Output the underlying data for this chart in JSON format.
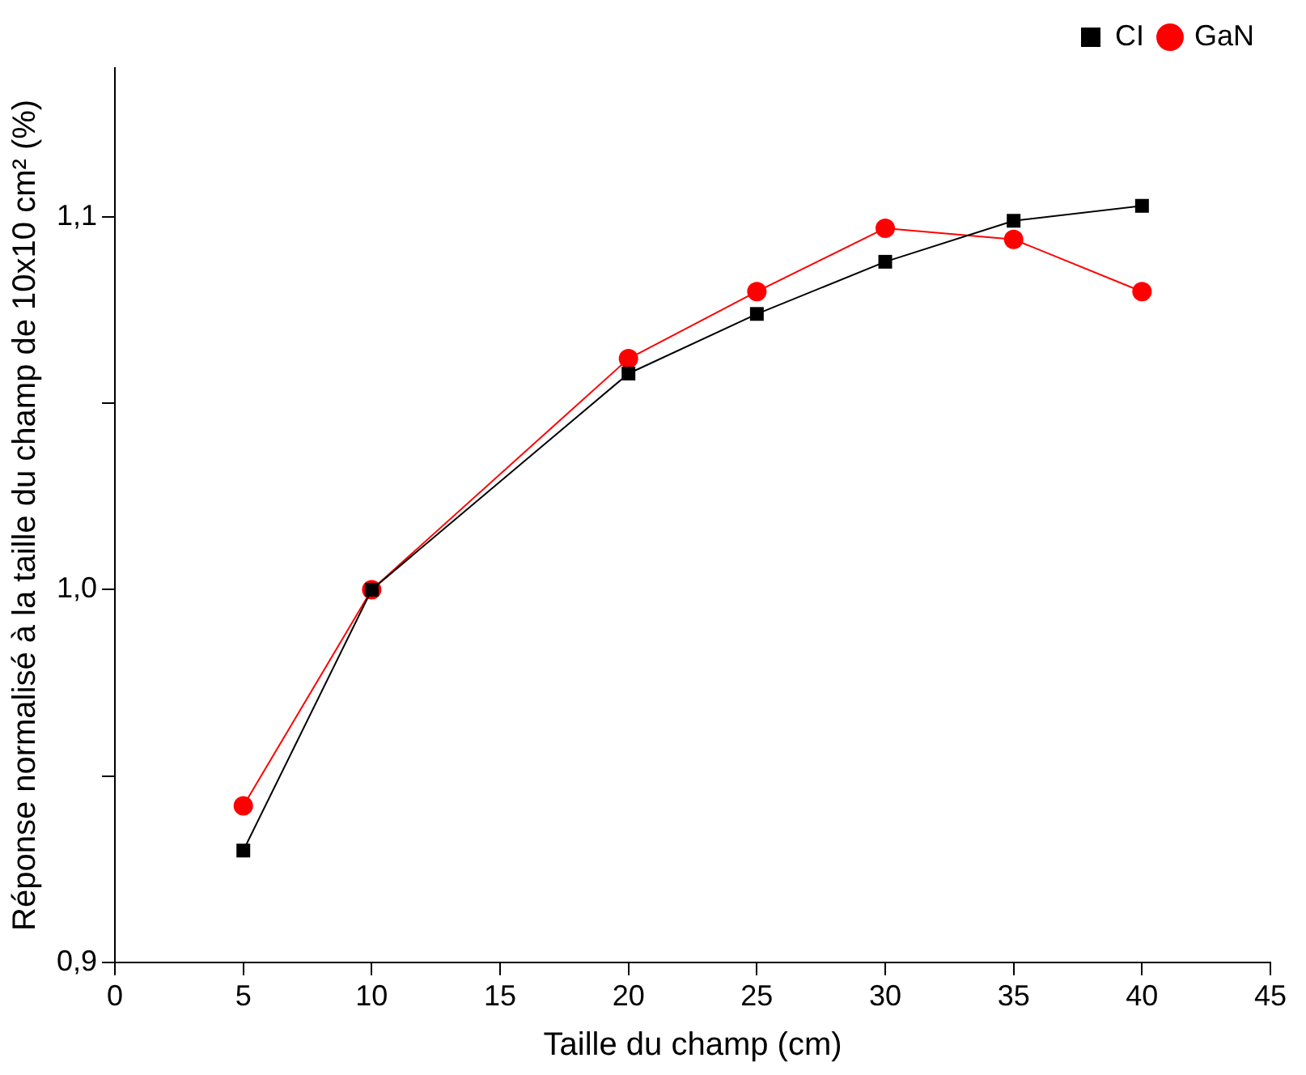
{
  "chart_data": {
    "type": "line",
    "xlabel": "Taille du champ (cm)",
    "ylabel": "Réponse normalisé à la taille du champ de 10x10 cm² (%)",
    "x": [
      5,
      10,
      20,
      25,
      30,
      35,
      40
    ],
    "series": [
      {
        "name": "CI",
        "color": "#000000",
        "marker": "square",
        "values": [
          0.93,
          1.0,
          1.058,
          1.074,
          1.088,
          1.099,
          1.103
        ]
      },
      {
        "name": "GaN",
        "color": "#ff0000",
        "marker": "circle",
        "values": [
          0.942,
          1.0,
          1.062,
          1.08,
          1.097,
          1.094,
          1.08
        ]
      }
    ],
    "xlim": [
      0,
      45
    ],
    "xticks": [
      0,
      5,
      10,
      15,
      20,
      25,
      30,
      35,
      40,
      45
    ],
    "ylim": [
      0.9,
      1.14
    ],
    "yticks": [
      {
        "value": 0.9,
        "label": "0,9"
      },
      {
        "value": 0.95,
        "label": null
      },
      {
        "value": 1.0,
        "label": "1,0"
      },
      {
        "value": 1.05,
        "label": null
      },
      {
        "value": 1.1,
        "label": "1,1"
      }
    ],
    "grid": false,
    "legend": "top right",
    "line_style": "solid"
  }
}
